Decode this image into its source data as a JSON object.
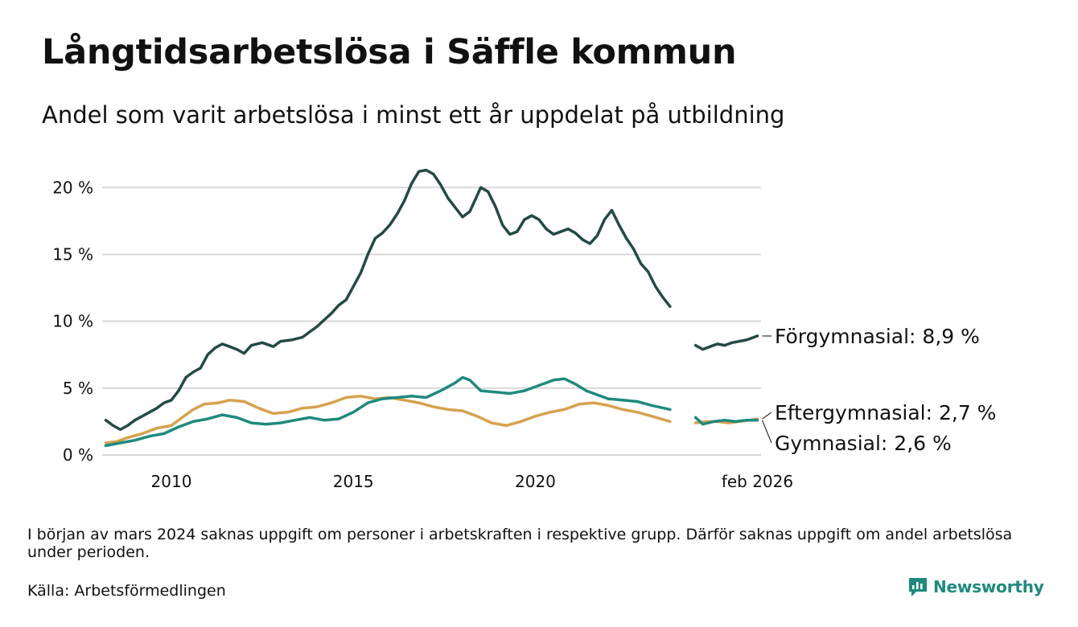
{
  "chart_data": {
    "type": "line",
    "title": "Långtidsarbetslösa i Säffle kommun",
    "subtitle": "Andel som varit arbetslösa i minst ett år uppdelat på utbildning",
    "x_range": [
      2008.1,
      2026.2
    ],
    "ylim": [
      0,
      22
    ],
    "y_ticks": [
      0,
      5,
      10,
      15,
      20
    ],
    "y_tick_labels": [
      "0 %",
      "5 %",
      "10 %",
      "15 %",
      "20 %"
    ],
    "x_ticks": [
      2010,
      2015,
      2020,
      2026.1
    ],
    "x_tick_labels": [
      "2010",
      "2015",
      "2020",
      "feb 2026"
    ],
    "grid": true,
    "gap": [
      2024.0,
      2024.4
    ],
    "series": [
      {
        "name": "Förgymnasial",
        "label": "Förgymnasial: 8,9 %",
        "color": "#234a45",
        "segments": [
          [
            [
              2008.2,
              2.6
            ],
            [
              2008.4,
              2.2
            ],
            [
              2008.6,
              1.9
            ],
            [
              2008.8,
              2.2
            ],
            [
              2009.0,
              2.6
            ],
            [
              2009.2,
              2.9
            ],
            [
              2009.4,
              3.2
            ],
            [
              2009.6,
              3.5
            ],
            [
              2009.8,
              3.9
            ],
            [
              2010.0,
              4.1
            ],
            [
              2010.2,
              4.8
            ],
            [
              2010.4,
              5.8
            ],
            [
              2010.6,
              6.2
            ],
            [
              2010.8,
              6.5
            ],
            [
              2011.0,
              7.5
            ],
            [
              2011.2,
              8.0
            ],
            [
              2011.4,
              8.3
            ],
            [
              2011.6,
              8.1
            ],
            [
              2011.8,
              7.9
            ],
            [
              2012.0,
              7.6
            ],
            [
              2012.2,
              8.2
            ],
            [
              2012.5,
              8.4
            ],
            [
              2012.8,
              8.1
            ],
            [
              2013.0,
              8.5
            ],
            [
              2013.3,
              8.6
            ],
            [
              2013.6,
              8.8
            ],
            [
              2013.8,
              9.2
            ],
            [
              2014.0,
              9.6
            ],
            [
              2014.2,
              10.1
            ],
            [
              2014.4,
              10.6
            ],
            [
              2014.6,
              11.2
            ],
            [
              2014.8,
              11.6
            ],
            [
              2015.0,
              12.6
            ],
            [
              2015.2,
              13.6
            ],
            [
              2015.4,
              15.0
            ],
            [
              2015.6,
              16.2
            ],
            [
              2015.8,
              16.6
            ],
            [
              2016.0,
              17.2
            ],
            [
              2016.2,
              18.0
            ],
            [
              2016.4,
              19.0
            ],
            [
              2016.6,
              20.3
            ],
            [
              2016.8,
              21.2
            ],
            [
              2017.0,
              21.3
            ],
            [
              2017.2,
              21.0
            ],
            [
              2017.4,
              20.2
            ],
            [
              2017.6,
              19.2
            ],
            [
              2017.8,
              18.5
            ],
            [
              2018.0,
              17.8
            ],
            [
              2018.2,
              18.2
            ],
            [
              2018.5,
              20.0
            ],
            [
              2018.7,
              19.7
            ],
            [
              2018.9,
              18.6
            ],
            [
              2019.1,
              17.2
            ],
            [
              2019.3,
              16.5
            ],
            [
              2019.5,
              16.7
            ],
            [
              2019.7,
              17.6
            ],
            [
              2019.9,
              17.9
            ],
            [
              2020.1,
              17.6
            ],
            [
              2020.3,
              16.9
            ],
            [
              2020.5,
              16.5
            ],
            [
              2020.7,
              16.7
            ],
            [
              2020.9,
              16.9
            ],
            [
              2021.1,
              16.6
            ],
            [
              2021.3,
              16.1
            ],
            [
              2021.5,
              15.8
            ],
            [
              2021.7,
              16.4
            ],
            [
              2021.9,
              17.6
            ],
            [
              2022.1,
              18.3
            ],
            [
              2022.3,
              17.2
            ],
            [
              2022.5,
              16.2
            ],
            [
              2022.7,
              15.4
            ],
            [
              2022.9,
              14.3
            ],
            [
              2023.1,
              13.7
            ],
            [
              2023.3,
              12.6
            ],
            [
              2023.5,
              11.8
            ],
            [
              2023.7,
              11.1
            ]
          ],
          [
            [
              2024.4,
              8.2
            ],
            [
              2024.6,
              7.9
            ],
            [
              2024.8,
              8.1
            ],
            [
              2025.0,
              8.3
            ],
            [
              2025.2,
              8.2
            ],
            [
              2025.4,
              8.4
            ],
            [
              2025.6,
              8.5
            ],
            [
              2025.8,
              8.6
            ],
            [
              2026.0,
              8.8
            ],
            [
              2026.1,
              8.9
            ]
          ]
        ]
      },
      {
        "name": "Eftergymnasial",
        "label": "Eftergymnasial: 2,7 %",
        "color": "#d6a24e",
        "segments": [
          [
            [
              2008.2,
              0.9
            ],
            [
              2008.5,
              1.0
            ],
            [
              2008.8,
              1.3
            ],
            [
              2009.2,
              1.6
            ],
            [
              2009.6,
              2.0
            ],
            [
              2010.0,
              2.2
            ],
            [
              2010.3,
              2.8
            ],
            [
              2010.6,
              3.4
            ],
            [
              2010.9,
              3.8
            ],
            [
              2011.3,
              3.9
            ],
            [
              2011.6,
              4.1
            ],
            [
              2012.0,
              4.0
            ],
            [
              2012.4,
              3.5
            ],
            [
              2012.8,
              3.1
            ],
            [
              2013.2,
              3.2
            ],
            [
              2013.6,
              3.5
            ],
            [
              2014.0,
              3.6
            ],
            [
              2014.4,
              3.9
            ],
            [
              2014.8,
              4.3
            ],
            [
              2015.2,
              4.4
            ],
            [
              2015.6,
              4.2
            ],
            [
              2016.0,
              4.3
            ],
            [
              2016.4,
              4.1
            ],
            [
              2016.8,
              3.9
            ],
            [
              2017.2,
              3.6
            ],
            [
              2017.6,
              3.4
            ],
            [
              2018.0,
              3.3
            ],
            [
              2018.4,
              2.9
            ],
            [
              2018.8,
              2.4
            ],
            [
              2019.2,
              2.2
            ],
            [
              2019.6,
              2.5
            ],
            [
              2020.0,
              2.9
            ],
            [
              2020.4,
              3.2
            ],
            [
              2020.8,
              3.4
            ],
            [
              2021.2,
              3.8
            ],
            [
              2021.6,
              3.9
            ],
            [
              2022.0,
              3.7
            ],
            [
              2022.4,
              3.4
            ],
            [
              2022.8,
              3.2
            ],
            [
              2023.2,
              2.9
            ],
            [
              2023.7,
              2.5
            ]
          ],
          [
            [
              2024.4,
              2.4
            ],
            [
              2024.7,
              2.5
            ],
            [
              2025.0,
              2.5
            ],
            [
              2025.3,
              2.4
            ],
            [
              2025.6,
              2.5
            ],
            [
              2025.9,
              2.6
            ],
            [
              2026.1,
              2.7
            ]
          ]
        ]
      },
      {
        "name": "Gymnasial",
        "label": "Gymnasial: 2,6 %",
        "color": "#1e8a7e",
        "segments": [
          [
            [
              2008.2,
              0.7
            ],
            [
              2008.6,
              0.9
            ],
            [
              2009.0,
              1.1
            ],
            [
              2009.4,
              1.4
            ],
            [
              2009.8,
              1.6
            ],
            [
              2010.2,
              2.1
            ],
            [
              2010.6,
              2.5
            ],
            [
              2011.0,
              2.7
            ],
            [
              2011.4,
              3.0
            ],
            [
              2011.8,
              2.8
            ],
            [
              2012.2,
              2.4
            ],
            [
              2012.6,
              2.3
            ],
            [
              2013.0,
              2.4
            ],
            [
              2013.4,
              2.6
            ],
            [
              2013.8,
              2.8
            ],
            [
              2014.2,
              2.6
            ],
            [
              2014.6,
              2.7
            ],
            [
              2015.0,
              3.2
            ],
            [
              2015.4,
              3.9
            ],
            [
              2015.8,
              4.2
            ],
            [
              2016.2,
              4.3
            ],
            [
              2016.6,
              4.4
            ],
            [
              2017.0,
              4.3
            ],
            [
              2017.4,
              4.8
            ],
            [
              2017.8,
              5.4
            ],
            [
              2018.0,
              5.8
            ],
            [
              2018.2,
              5.6
            ],
            [
              2018.5,
              4.8
            ],
            [
              2018.9,
              4.7
            ],
            [
              2019.3,
              4.6
            ],
            [
              2019.7,
              4.8
            ],
            [
              2020.1,
              5.2
            ],
            [
              2020.5,
              5.6
            ],
            [
              2020.8,
              5.7
            ],
            [
              2021.1,
              5.3
            ],
            [
              2021.4,
              4.8
            ],
            [
              2021.7,
              4.5
            ],
            [
              2022.0,
              4.2
            ],
            [
              2022.4,
              4.1
            ],
            [
              2022.8,
              4.0
            ],
            [
              2023.2,
              3.7
            ],
            [
              2023.7,
              3.4
            ]
          ],
          [
            [
              2024.4,
              2.8
            ],
            [
              2024.6,
              2.3
            ],
            [
              2024.9,
              2.5
            ],
            [
              2025.2,
              2.6
            ],
            [
              2025.5,
              2.5
            ],
            [
              2025.8,
              2.6
            ],
            [
              2026.1,
              2.6
            ]
          ]
        ]
      }
    ]
  },
  "footer": {
    "note": "I början av mars 2024 saknas uppgift om personer i arbetskraften i respektive grupp. Därför saknas uppgift om andel arbetslösa under perioden.",
    "source": "Källa: Arbetsförmedlingen",
    "brand": "Newsworthy",
    "brand_color": "#1e8a7e"
  }
}
